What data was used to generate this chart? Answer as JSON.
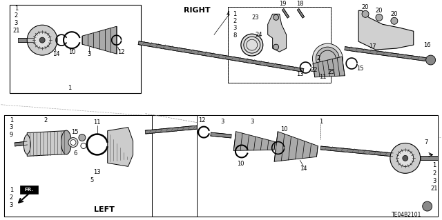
{
  "background_color": "#ffffff",
  "diagram_code": "TE04B2101",
  "right_label": "RIGHT",
  "left_label": "LEFT",
  "fr_label": "FR.",
  "figsize": [
    6.4,
    3.19
  ],
  "dpi": 100,
  "line_color": "#000000",
  "text_color": "#000000",
  "font_size_label": 6,
  "font_size_code": 5.5,
  "font_size_section": 7
}
